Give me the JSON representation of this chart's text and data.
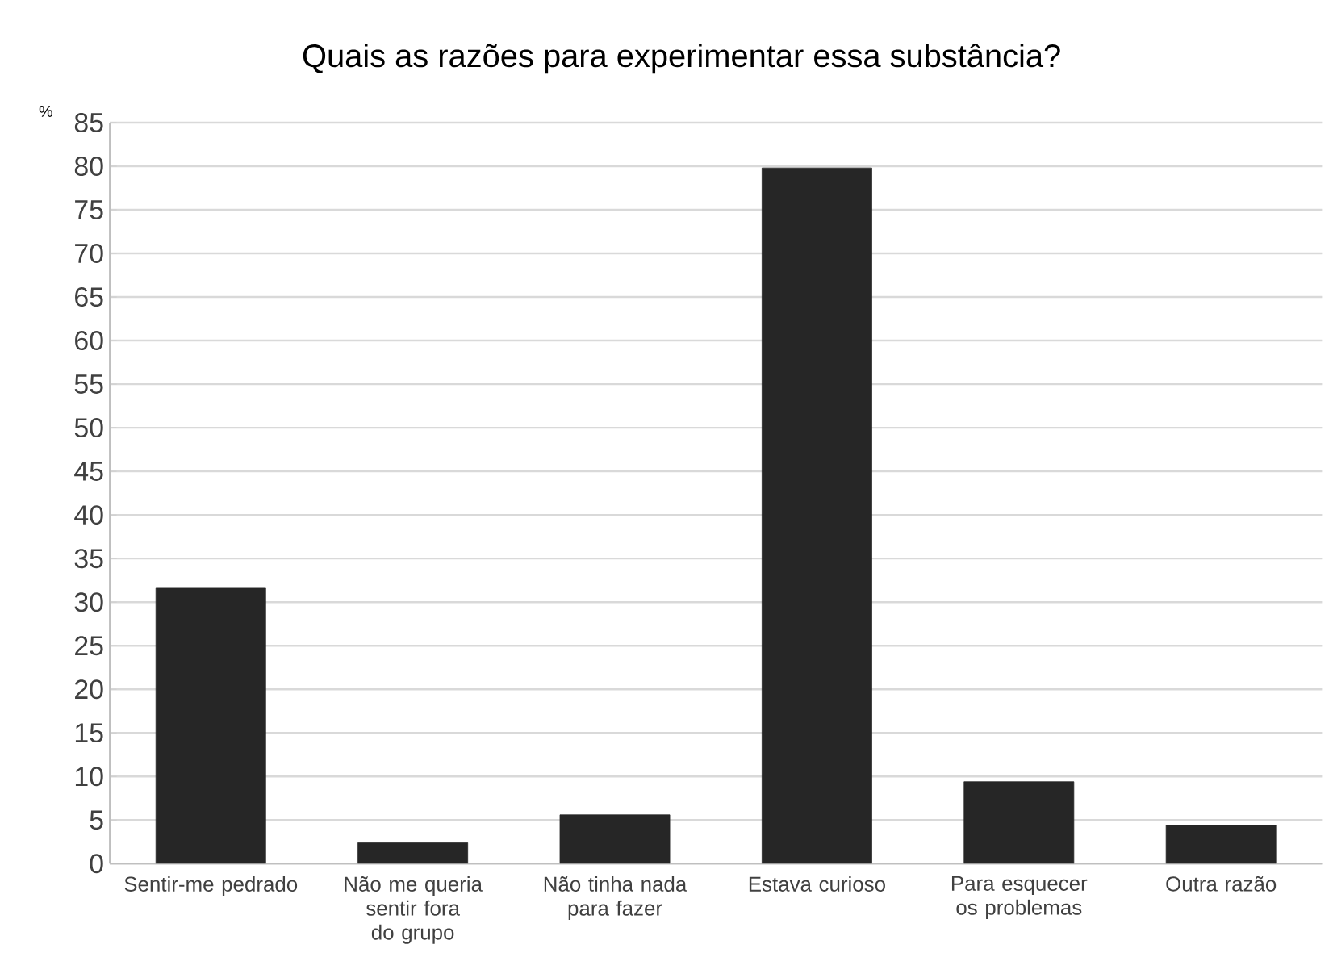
{
  "chart_data": {
    "type": "bar",
    "title": "Quais as razões para experimentar essa substância?",
    "ylabel": "%",
    "categories": [
      "Sentir-me pedrado",
      "Não me queria sentir fora do grupo",
      "Não tinha nada para fazer",
      "Estava curioso",
      "Para esquecer os problemas",
      "Outra razão"
    ],
    "values": [
      31.6,
      2.4,
      5.6,
      79.8,
      9.4,
      4.4
    ],
    "color": "#262626",
    "ylim": [
      0,
      85
    ],
    "yticks": [
      0,
      5,
      10,
      15,
      20,
      25,
      30,
      35,
      40,
      45,
      50,
      55,
      60,
      65,
      70,
      75,
      80,
      85
    ],
    "grid": "y"
  }
}
